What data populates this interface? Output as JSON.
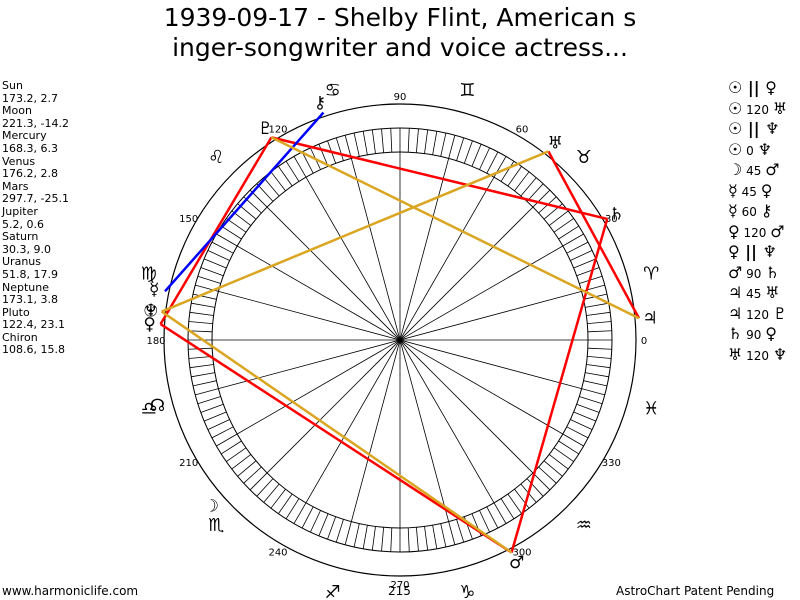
{
  "header": {
    "title_line1": "1939-09-17 - Shelby Flint, American s",
    "title_line2": "inger-songwriter and voice actress..."
  },
  "planets": [
    {
      "name": "Sun",
      "coords": "173.2, 2.7"
    },
    {
      "name": "Moon",
      "coords": "221.3, -14.2"
    },
    {
      "name": "Mercury",
      "coords": "168.3, 6.3"
    },
    {
      "name": "Venus",
      "coords": "176.2, 2.8"
    },
    {
      "name": "Mars",
      "coords": "297.7, -25.1"
    },
    {
      "name": "Jupiter",
      "coords": "5.2, 0.6"
    },
    {
      "name": "Saturn",
      "coords": "30.3, 9.0"
    },
    {
      "name": "Uranus",
      "coords": "51.8, 17.9"
    },
    {
      "name": "Neptune",
      "coords": "173.1, 3.8"
    },
    {
      "name": "Pluto",
      "coords": "122.4, 23.1"
    },
    {
      "name": "Chiron",
      "coords": "108.6, 15.8"
    }
  ],
  "aspects": [
    {
      "p1": "☉",
      "asp": "||",
      "p2": "♀"
    },
    {
      "p1": "☉",
      "asp": "120",
      "p2": "♅"
    },
    {
      "p1": "☉",
      "asp": "||",
      "p2": "♆"
    },
    {
      "p1": "☉",
      "asp": "0",
      "p2": "♆"
    },
    {
      "p1": "☽",
      "asp": "45",
      "p2": "♂"
    },
    {
      "p1": "☿",
      "asp": "45",
      "p2": "♀"
    },
    {
      "p1": "☿",
      "asp": "60",
      "p2": "⚷"
    },
    {
      "p1": "♀",
      "asp": "120",
      "p2": "♂"
    },
    {
      "p1": "♀",
      "asp": "||",
      "p2": "♆"
    },
    {
      "p1": "♂",
      "asp": "90",
      "p2": "♄"
    },
    {
      "p1": "♃",
      "asp": "45",
      "p2": "♅"
    },
    {
      "p1": "♃",
      "asp": "120",
      "p2": "♇"
    },
    {
      "p1": "♄",
      "asp": "90",
      "p2": "♀"
    },
    {
      "p1": "♅",
      "asp": "120",
      "p2": "♆"
    }
  ],
  "wheel": {
    "degree_labels": [
      "0",
      "30",
      "60",
      "90",
      "120",
      "150",
      "180",
      "210",
      "240",
      "270",
      "300",
      "330"
    ],
    "zodiac": [
      "♈",
      "♉",
      "♊",
      "♋",
      "♌",
      "♍",
      "♎",
      "♏",
      "♐",
      "♑",
      "♒",
      "♓"
    ],
    "planet_glyphs": [
      {
        "id": "sun",
        "glyph": "☉",
        "lon": 173.2
      },
      {
        "id": "moon",
        "glyph": "☽",
        "lon": 221.3
      },
      {
        "id": "mercury",
        "glyph": "☿",
        "lon": 168.3
      },
      {
        "id": "venus",
        "glyph": "♀",
        "lon": 176.2
      },
      {
        "id": "mars",
        "glyph": "♂",
        "lon": 297.7
      },
      {
        "id": "jupiter",
        "glyph": "♃",
        "lon": 5.2
      },
      {
        "id": "saturn",
        "glyph": "♄",
        "lon": 30.3
      },
      {
        "id": "uranus",
        "glyph": "♅",
        "lon": 51.8
      },
      {
        "id": "neptune",
        "glyph": "♆",
        "lon": 173.1
      },
      {
        "id": "pluto",
        "glyph": "♇",
        "lon": 122.4
      },
      {
        "id": "chiron",
        "glyph": "⚷",
        "lon": 108.6
      },
      {
        "id": "node",
        "glyph": "☊",
        "lon": 195
      }
    ],
    "aspect_lines": [
      {
        "a": "venus",
        "b": "pluto",
        "color": "#ff0000"
      },
      {
        "a": "pluto",
        "b": "saturn",
        "color": "#ff0000"
      },
      {
        "a": "saturn",
        "b": "mars",
        "color": "#ff0000"
      },
      {
        "a": "mars",
        "b": "venus",
        "color": "#ff0000"
      },
      {
        "a": "uranus",
        "b": "jupiter",
        "color": "#ff0000"
      },
      {
        "a": "mercury",
        "b": "chiron",
        "color": "#0000ff"
      },
      {
        "a": "sun",
        "b": "uranus",
        "color": "#daa520"
      },
      {
        "a": "sun",
        "b": "mars",
        "color": "#daa520"
      },
      {
        "a": "pluto",
        "b": "jupiter",
        "color": "#daa520"
      }
    ],
    "center_label": "215"
  },
  "footer": {
    "left": "www.harmoniclife.com",
    "right": "AstroChart Patent Pending"
  },
  "colors": {
    "hard_aspect": "#ff0000",
    "soft_aspect": "#daa520",
    "sextile": "#0000ff"
  }
}
